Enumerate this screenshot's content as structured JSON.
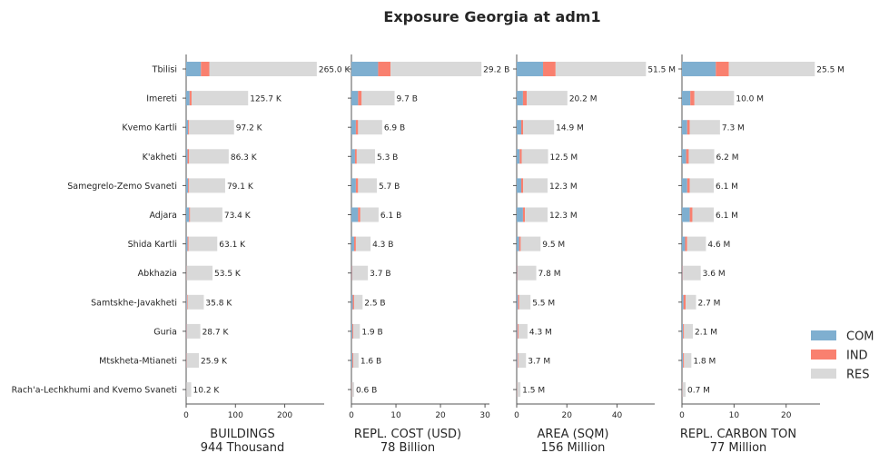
{
  "chart_data": {
    "type": "bar",
    "title": "Exposure Georgia at adm1",
    "categories": [
      "Tbilisi",
      "Imereti",
      "Kvemo Kartli",
      "K'akheti",
      "Samegrelo-Zemo Svaneti",
      "Adjara",
      "Shida Kartli",
      "Abkhazia",
      "Samtskhe-Javakheti",
      "Guria",
      "Mtskheta-Mtianeti",
      "Rach'a-Lechkhumi and Kvemo Svaneti"
    ],
    "legend": {
      "placement": "right",
      "entries": [
        "COM",
        "IND",
        "RES"
      ],
      "colors": {
        "COM": "#7fafd0",
        "IND": "#f9806f",
        "RES": "#d9d9d9"
      }
    },
    "panels": [
      {
        "xlabel": "BUILDINGS",
        "subtitle": "944 Thousand",
        "xlim": [
          0,
          280
        ],
        "xticks": [
          0,
          100,
          200
        ],
        "totals": [
          265.0,
          125.7,
          97.2,
          86.3,
          79.1,
          73.4,
          63.1,
          53.5,
          35.8,
          28.7,
          25.9,
          10.2
        ],
        "labels": [
          "265.0 K",
          "125.7 K",
          "97.2 K",
          "86.3 K",
          "79.1 K",
          "73.4 K",
          "63.1 K",
          "53.5 K",
          "35.8 K",
          "28.7 K",
          "25.9 K",
          "10.2 K"
        ],
        "series": [
          {
            "name": "COM",
            "values": [
              30,
              7,
              4,
              3,
              4,
              6,
              3,
              0.5,
              1.5,
              0.8,
              0.6,
              0.3
            ]
          },
          {
            "name": "IND",
            "values": [
              17,
              4,
              2,
              3,
              2,
              2,
              2,
              0.5,
              1.5,
              0.8,
              0.8,
              0.2
            ]
          },
          {
            "name": "RES",
            "values": [
              218,
              114.7,
              91.2,
              80.3,
              73.1,
              65.4,
              58.1,
              52.5,
              32.8,
              27.1,
              24.5,
              9.7
            ]
          }
        ]
      },
      {
        "xlabel": "REPL. COST (USD)",
        "subtitle": "78 Billion",
        "xlim": [
          0,
          31
        ],
        "xticks": [
          0,
          10,
          20,
          30
        ],
        "totals": [
          29.2,
          9.7,
          6.9,
          5.3,
          5.7,
          6.1,
          4.3,
          3.7,
          2.5,
          1.9,
          1.6,
          0.6
        ],
        "labels": [
          "29.2 B",
          "9.7 B",
          "6.9 B",
          "5.3 B",
          "5.7 B",
          "6.1 B",
          "4.3 B",
          "3.7 B",
          "2.5 B",
          "1.9 B",
          "1.6 B",
          "0.6 B"
        ],
        "series": [
          {
            "name": "COM",
            "values": [
              6,
              1.5,
              1,
              0.8,
              1,
              1.5,
              0.6,
              0.1,
              0.3,
              0.2,
              0.2,
              0.05
            ]
          },
          {
            "name": "IND",
            "values": [
              2.8,
              0.8,
              0.5,
              0.4,
              0.5,
              0.5,
              0.4,
              0.1,
              0.3,
              0.2,
              0.2,
              0.05
            ]
          },
          {
            "name": "RES",
            "values": [
              20.4,
              7.4,
              5.4,
              4.1,
              4.2,
              4.1,
              3.3,
              3.5,
              1.9,
              1.5,
              1.2,
              0.5
            ]
          }
        ]
      },
      {
        "xlabel": "AREA (SQM)",
        "subtitle": "156 Million",
        "xlim": [
          0,
          55
        ],
        "xticks": [
          0,
          20,
          40
        ],
        "totals": [
          51.5,
          20.2,
          14.9,
          12.5,
          12.3,
          12.3,
          9.5,
          7.8,
          5.5,
          4.3,
          3.7,
          1.5
        ],
        "labels": [
          "51.5 M",
          "20.2 M",
          "14.9 M",
          "12.5 M",
          "12.3 M",
          "12.3 M",
          "9.5 M",
          "7.8 M",
          "5.5 M",
          "4.3 M",
          "3.7 M",
          "1.5 M"
        ],
        "series": [
          {
            "name": "COM",
            "values": [
              10.5,
              2.5,
              1.8,
              1.2,
              1.8,
              2.5,
              1,
              0.2,
              0.5,
              0.3,
              0.3,
              0.1
            ]
          },
          {
            "name": "IND",
            "values": [
              5,
              1.5,
              0.8,
              0.8,
              0.8,
              0.8,
              0.6,
              0.2,
              0.5,
              0.4,
              0.3,
              0.1
            ]
          },
          {
            "name": "RES",
            "values": [
              36,
              16.2,
              12.3,
              10.5,
              9.7,
              9,
              7.9,
              7.4,
              4.5,
              3.6,
              3.1,
              1.3
            ]
          }
        ]
      },
      {
        "xlabel": "REPL. CARBON TON",
        "subtitle": "77 Million",
        "xlim": [
          0,
          26.5
        ],
        "xticks": [
          0,
          10,
          20
        ],
        "totals": [
          25.5,
          10.0,
          7.3,
          6.2,
          6.1,
          6.1,
          4.6,
          3.6,
          2.7,
          2.1,
          1.8,
          0.7
        ],
        "labels": [
          "25.5 M",
          "10.0 M",
          "7.3 M",
          "6.2 M",
          "6.1 M",
          "6.1 M",
          "4.6 M",
          "3.6 M",
          "2.7 M",
          "2.1 M",
          "1.8 M",
          "0.7 M"
        ],
        "series": [
          {
            "name": "COM",
            "values": [
              6.5,
              1.6,
              1,
              0.8,
              1,
              1.5,
              0.6,
              0.1,
              0.3,
              0.2,
              0.2,
              0.05
            ]
          },
          {
            "name": "IND",
            "values": [
              2.5,
              0.8,
              0.5,
              0.5,
              0.5,
              0.5,
              0.4,
              0.1,
              0.4,
              0.2,
              0.2,
              0.05
            ]
          },
          {
            "name": "RES",
            "values": [
              16.5,
              7.6,
              5.8,
              4.9,
              4.6,
              4.1,
              3.6,
              3.4,
              2,
              1.7,
              1.4,
              0.6
            ]
          }
        ]
      }
    ]
  }
}
